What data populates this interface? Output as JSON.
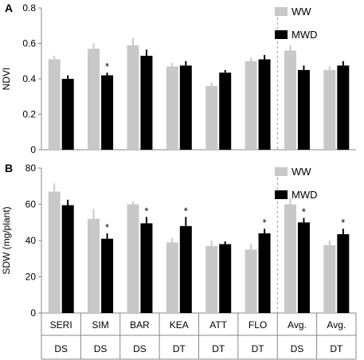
{
  "colors": {
    "ww": "#c8c8c8",
    "mwd": "#000000",
    "axis": "#888888",
    "divider": "#999999"
  },
  "chart_data": [
    {
      "panel": "A",
      "type": "bar",
      "ylabel": "NDVI",
      "ylim": [
        0,
        0.8
      ],
      "yticks": [
        "0",
        "0.2",
        "0.4",
        "0.6",
        "0.8"
      ],
      "categories": [
        "SERI",
        "SIM",
        "BAR",
        "KEA",
        "ATT",
        "FLO",
        "Avg.",
        "Avg."
      ],
      "legend": {
        "position": "top-right"
      },
      "series": [
        {
          "name": "WW",
          "values": [
            0.51,
            0.57,
            0.59,
            0.47,
            0.36,
            0.5,
            0.56,
            0.45
          ],
          "errors": [
            0.02,
            0.03,
            0.04,
            0.02,
            0.02,
            0.02,
            0.03,
            0.02
          ]
        },
        {
          "name": "MWD",
          "values": [
            0.4,
            0.42,
            0.53,
            0.475,
            0.435,
            0.51,
            0.45,
            0.475
          ],
          "errors": [
            0.02,
            0.015,
            0.035,
            0.025,
            0.015,
            0.025,
            0.025,
            0.025
          ]
        }
      ],
      "significant_mwd": [
        false,
        true,
        false,
        false,
        false,
        false,
        false,
        false
      ],
      "divider_after_index": 5
    },
    {
      "panel": "B",
      "type": "bar",
      "ylabel": "SDW (mg/plant)",
      "ylim": [
        0,
        80
      ],
      "yticks": [
        "0",
        "20",
        "40",
        "60",
        "80"
      ],
      "categories": [
        "SERI",
        "SIM",
        "BAR",
        "KEA",
        "ATT",
        "FLO",
        "Avg.",
        "Avg."
      ],
      "groups": [
        "DS",
        "DS",
        "DS",
        "DT",
        "DT",
        "DT",
        "DS",
        "DT"
      ],
      "legend": {
        "position": "top-right"
      },
      "series": [
        {
          "name": "WW",
          "values": [
            67,
            52,
            60,
            39,
            37,
            35,
            60,
            37.5
          ],
          "errors": [
            4.5,
            5.5,
            1.5,
            2.5,
            3,
            3,
            3.5,
            2.5
          ]
        },
        {
          "name": "MWD",
          "values": [
            59.5,
            41,
            49.5,
            48,
            38,
            44,
            50,
            43.5
          ],
          "errors": [
            3,
            3,
            3.5,
            5,
            1.5,
            2.5,
            2.5,
            3
          ]
        }
      ],
      "significant_mwd": [
        false,
        true,
        true,
        true,
        false,
        true,
        true,
        true
      ],
      "divider_after_index": 5
    }
  ],
  "star_symbol": "*"
}
